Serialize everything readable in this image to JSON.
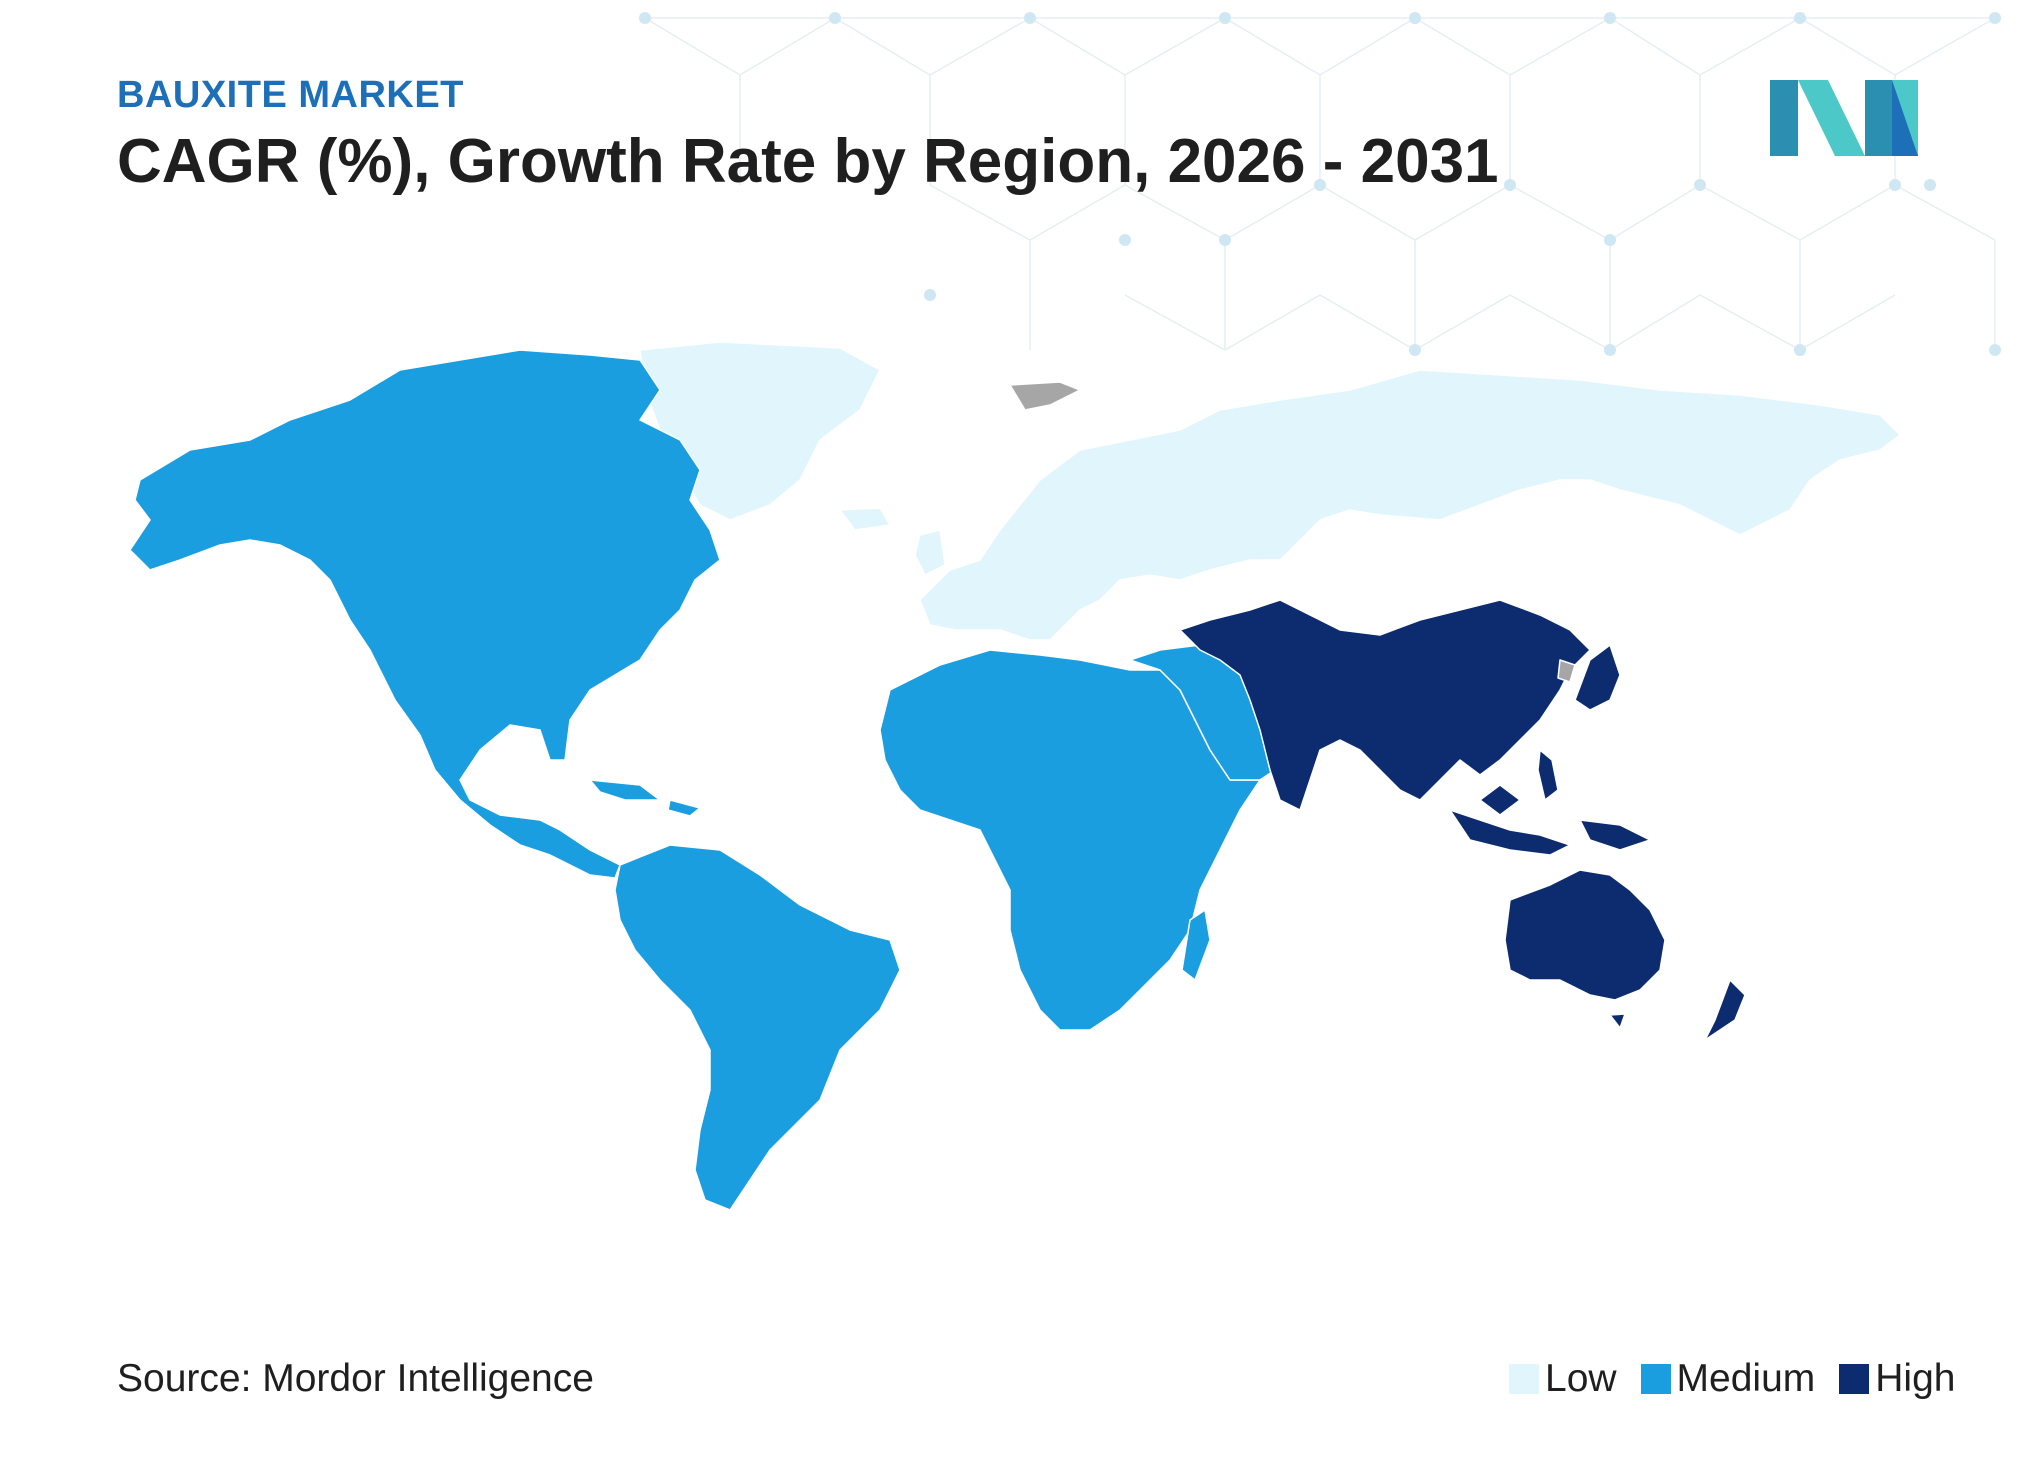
{
  "header": {
    "supertitle": "BAUXITE MARKET",
    "title": "CAGR (%), Growth Rate by Region, 2026 - 2031"
  },
  "logo": {
    "icon": "mordor-intelligence-logo-icon",
    "colors": [
      "#2a8fb0",
      "#4cc8c8",
      "#1d6fb8"
    ]
  },
  "map": {
    "type": "choropleth",
    "regions": [
      {
        "name": "North America",
        "level": "Medium"
      },
      {
        "name": "South America",
        "level": "Medium"
      },
      {
        "name": "Europe",
        "level": "Low"
      },
      {
        "name": "Russia",
        "level": "Low"
      },
      {
        "name": "Greenland",
        "level": "Low"
      },
      {
        "name": "Africa",
        "level": "Medium"
      },
      {
        "name": "Middle East",
        "level": "Medium"
      },
      {
        "name": "Asia-Pacific",
        "level": "High"
      },
      {
        "name": "Australia",
        "level": "High"
      },
      {
        "name": "New Zealand",
        "level": "High"
      }
    ],
    "colors": {
      "Low": "#e0f5fc",
      "Medium": "#1b9ee0",
      "High": "#0d2c6f",
      "NoData": "#a6a6a6"
    }
  },
  "footer": {
    "source": "Source: Mordor Intelligence",
    "legend": [
      {
        "label": "Low",
        "color": "#e0f5fc"
      },
      {
        "label": "Medium",
        "color": "#1b9ee0"
      },
      {
        "label": "High",
        "color": "#0d2c6f"
      }
    ]
  }
}
